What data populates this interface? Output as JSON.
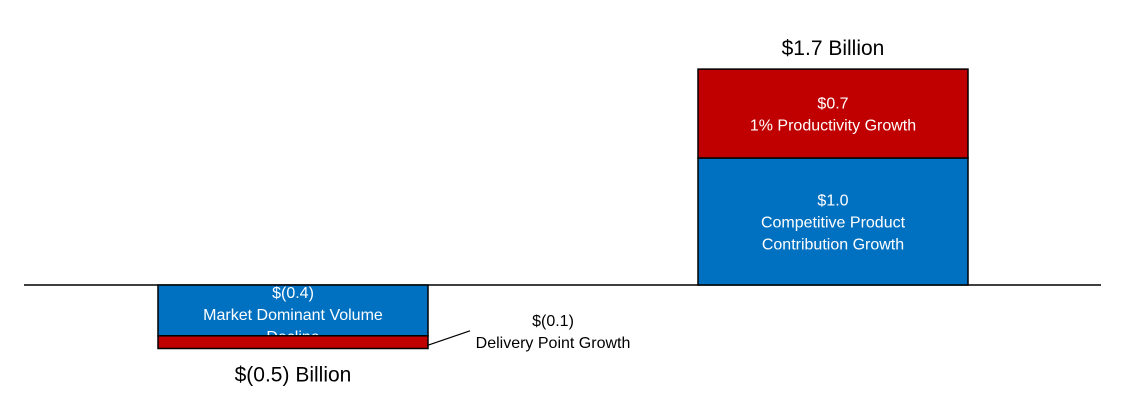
{
  "chart_data": {
    "type": "bar",
    "stacked": true,
    "ylim": [
      -0.6,
      1.85
    ],
    "bars": [
      {
        "total_label": "$(0.5) Billion",
        "total": -0.5,
        "segments": [
          {
            "value": -0.4,
            "value_label": "$(0.4)",
            "name_lines": [
              "Market Dominant Volume",
              "Decline"
            ],
            "color": "#0070C0"
          },
          {
            "value": -0.1,
            "value_label": "$(0.1)",
            "name_lines": [
              "Delivery Point Growth"
            ],
            "color": "#C00000",
            "callout": true
          }
        ]
      },
      {
        "total_label": "$1.7 Billion",
        "total": 1.7,
        "segments": [
          {
            "value": 1.0,
            "value_label": "$1.0",
            "name_lines": [
              "Competitive Product",
              "Contribution Growth"
            ],
            "color": "#0070C0"
          },
          {
            "value": 0.7,
            "value_label": "$0.7",
            "name_lines": [
              "1% Productivity Growth"
            ],
            "color": "#C00000"
          }
        ]
      }
    ]
  }
}
